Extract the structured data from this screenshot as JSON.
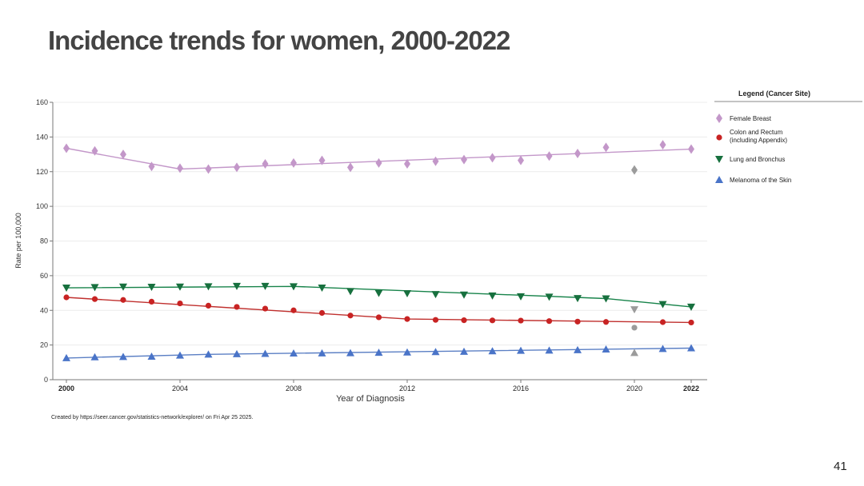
{
  "slide": {
    "title": "Incidence trends for women, 2000-2022",
    "credit": "Created by https://seer.cancer.gov/statistics-network/explorer/ on Fri Apr 25 2025.",
    "page_number": "41"
  },
  "chart_data": {
    "type": "line",
    "title": "Incidence trends for women, 2000-2022",
    "xlabel": "Year of Diagnosis",
    "ylabel": "Rate per 100,000",
    "xlim": [
      2000,
      2022
    ],
    "ylim": [
      0,
      160
    ],
    "x_ticks": [
      2000,
      2004,
      2008,
      2012,
      2016,
      2020,
      2022
    ],
    "x_ticks_bold": [
      2000,
      2022
    ],
    "y_ticks": [
      0,
      20,
      40,
      60,
      80,
      100,
      120,
      140,
      160
    ],
    "grid": true,
    "legend_title": "Legend (Cancer Site)",
    "legend_position": "right",
    "years": [
      2000,
      2001,
      2002,
      2003,
      2004,
      2005,
      2006,
      2007,
      2008,
      2009,
      2010,
      2011,
      2012,
      2013,
      2014,
      2015,
      2016,
      2017,
      2018,
      2019,
      2020,
      2021,
      2022
    ],
    "excluded_color": "#9b9b9b",
    "excluded_year": 2020,
    "series": [
      {
        "name": "Female Breast",
        "marker": "diamond",
        "color": "#c397c9",
        "point_color": "#c397c9",
        "values": [
          133.5,
          132.0,
          130.0,
          123.0,
          122.0,
          121.5,
          122.5,
          124.5,
          125.0,
          126.5,
          122.5,
          125.0,
          124.5,
          126.0,
          127.0,
          128.0,
          126.5,
          129.0,
          130.5,
          134.0,
          121.0,
          135.5,
          133.0
        ],
        "trend_x": [
          2000,
          2004,
          2022
        ],
        "trend_y": [
          133.5,
          121.5,
          133.0
        ]
      },
      {
        "name": "Colon and Rectum (including Appendix)",
        "label_lines": [
          "Colon and Rectum",
          "(including Appendix)"
        ],
        "marker": "circle",
        "color": "#c0302e",
        "point_color": "#c82323",
        "values": [
          47.5,
          46.5,
          46.0,
          45.0,
          44.0,
          42.7,
          42.0,
          41.0,
          40.0,
          38.5,
          37.0,
          36.0,
          35.0,
          34.5,
          34.3,
          34.2,
          34.1,
          33.8,
          33.5,
          33.3,
          30.0,
          33.2,
          33.0
        ],
        "trend_x": [
          2000,
          2012,
          2022
        ],
        "trend_y": [
          47.5,
          35.0,
          33.0
        ]
      },
      {
        "name": "Lung and Bronchus",
        "marker": "triangle-down",
        "color": "#17834a",
        "point_color": "#17703e",
        "values": [
          53.0,
          53.3,
          53.6,
          53.5,
          53.6,
          53.8,
          54.0,
          54.0,
          53.8,
          53.0,
          51.0,
          50.0,
          49.8,
          49.3,
          49.0,
          48.5,
          48.0,
          47.8,
          47.0,
          46.8,
          40.5,
          43.5,
          42.0
        ],
        "trend_x": [
          2000,
          2008,
          2019,
          2022
        ],
        "trend_y": [
          53.0,
          53.8,
          46.8,
          42.0
        ]
      },
      {
        "name": "Melanoma of the Skin",
        "marker": "triangle-up",
        "color": "#5b7fc4",
        "point_color": "#4a74c8",
        "values": [
          12.5,
          13.0,
          13.2,
          13.4,
          14.0,
          14.6,
          14.8,
          15.0,
          15.2,
          15.3,
          15.4,
          15.6,
          15.8,
          16.0,
          16.2,
          16.5,
          16.8,
          16.9,
          17.1,
          17.5,
          15.5,
          17.8,
          18.2
        ],
        "trend_x": [
          2000,
          2005,
          2022
        ],
        "trend_y": [
          12.5,
          14.6,
          18.2
        ]
      }
    ]
  }
}
